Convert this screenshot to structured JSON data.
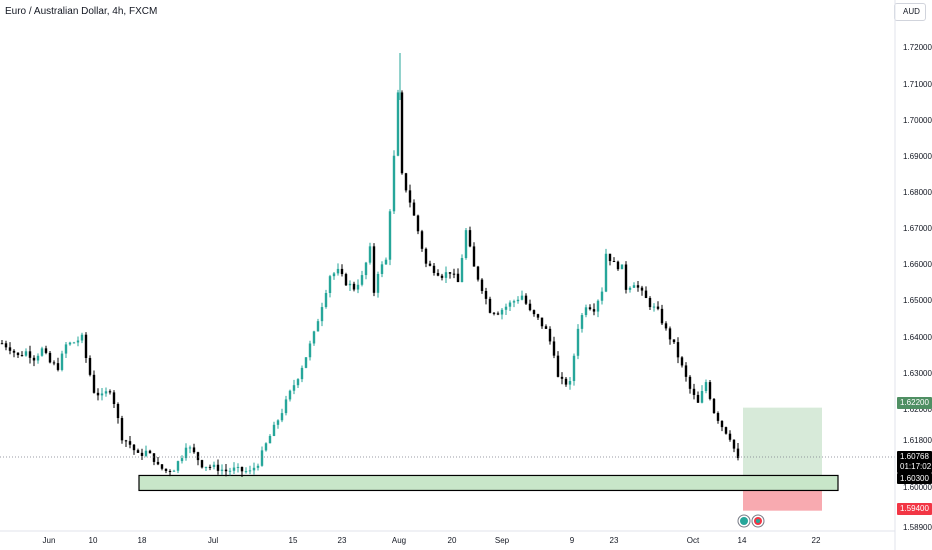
{
  "header": {
    "title": "Euro / Australian Dollar, 4h, FXCM"
  },
  "currency_button": {
    "label": "AUD"
  },
  "colors": {
    "up": "#26a69a",
    "down": "#000000",
    "zone_fill": "#c8e6c9",
    "target_fill": "#d7ead9",
    "stop_fill": "#f8aab0",
    "target_badge": "#4f8f63",
    "stop_badge": "#f23645",
    "current_badge": "#000000"
  },
  "price_badges": {
    "target": "1.62200",
    "current": "1.60768",
    "countdown": "01:17:02",
    "entry": "1.60300",
    "stop": "1.59400"
  },
  "chart_data": {
    "type": "candlestick",
    "title": "Euro / Australian Dollar, 4h, FXCM",
    "yaxis": {
      "ticks": [
        "1.72000",
        "1.71000",
        "1.70000",
        "1.69000",
        "1.68000",
        "1.67000",
        "1.66000",
        "1.65000",
        "1.64000",
        "1.63000",
        "1.62000",
        "1.61800",
        "1.60000",
        "1.58900"
      ],
      "range": [
        1.588,
        1.722
      ]
    },
    "xaxis": {
      "ticks": [
        "Jun",
        "10",
        "18",
        "Jul",
        "15",
        "23",
        "Aug",
        "20",
        "Sep",
        "9",
        "23",
        "Oct",
        "14",
        "22"
      ]
    },
    "price_path": [
      [
        0,
        1.6395
      ],
      [
        2,
        1.6382
      ],
      [
        4,
        1.636
      ],
      [
        6,
        1.6372
      ],
      [
        8,
        1.6355
      ],
      [
        10,
        1.6378
      ],
      [
        12,
        1.6342
      ],
      [
        14,
        1.633
      ],
      [
        16,
        1.639
      ],
      [
        18,
        1.6398
      ],
      [
        20,
        1.641
      ],
      [
        21,
        1.6355
      ],
      [
        23,
        1.6265
      ],
      [
        25,
        1.625
      ],
      [
        27,
        1.627
      ],
      [
        28,
        1.6235
      ],
      [
        30,
        1.614
      ],
      [
        32,
        1.612
      ],
      [
        34,
        1.609
      ],
      [
        36,
        1.61
      ],
      [
        38,
        1.608
      ],
      [
        39,
        1.606
      ],
      [
        41,
        1.6048
      ],
      [
        43,
        1.6055
      ],
      [
        45,
        1.609
      ],
      [
        46,
        1.612
      ],
      [
        48,
        1.6095
      ],
      [
        50,
        1.6065
      ],
      [
        52,
        1.606
      ],
      [
        54,
        1.6055
      ],
      [
        56,
        1.6048
      ],
      [
        58,
        1.6052
      ],
      [
        60,
        1.6048
      ],
      [
        62,
        1.6045
      ],
      [
        64,
        1.607
      ],
      [
        66,
        1.612
      ],
      [
        68,
        1.6165
      ],
      [
        70,
        1.621
      ],
      [
        72,
        1.626
      ],
      [
        74,
        1.6305
      ],
      [
        76,
        1.636
      ],
      [
        78,
        1.642
      ],
      [
        80,
        1.65
      ],
      [
        82,
        1.658
      ],
      [
        84,
        1.659
      ],
      [
        86,
        1.656
      ],
      [
        88,
        1.6545
      ],
      [
        90,
        1.6575
      ],
      [
        92,
        1.665
      ],
      [
        93,
        1.6535
      ],
      [
        94,
        1.659
      ],
      [
        96,
        1.662
      ],
      [
        98,
        1.69
      ],
      [
        99,
        1.707
      ],
      [
        100,
        1.685
      ],
      [
        102,
        1.678
      ],
      [
        104,
        1.67
      ],
      [
        106,
        1.661
      ],
      [
        108,
        1.6595
      ],
      [
        110,
        1.658
      ],
      [
        112,
        1.659
      ],
      [
        114,
        1.656
      ],
      [
        116,
        1.67
      ],
      [
        118,
        1.66
      ],
      [
        120,
        1.6545
      ],
      [
        122,
        1.6485
      ],
      [
        124,
        1.648
      ],
      [
        126,
        1.6495
      ],
      [
        128,
        1.651
      ],
      [
        130,
        1.6525
      ],
      [
        132,
        1.648
      ],
      [
        134,
        1.646
      ],
      [
        136,
        1.643
      ],
      [
        138,
        1.637
      ],
      [
        139,
        1.63
      ],
      [
        140,
        1.629
      ],
      [
        142,
        1.6285
      ],
      [
        144,
        1.644
      ],
      [
        146,
        1.65
      ],
      [
        148,
        1.649
      ],
      [
        150,
        1.654
      ],
      [
        151,
        1.664
      ],
      [
        153,
        1.661
      ],
      [
        155,
        1.66
      ],
      [
        156,
        1.6545
      ],
      [
        158,
        1.656
      ],
      [
        160,
        1.653
      ],
      [
        162,
        1.65
      ],
      [
        164,
        1.648
      ],
      [
        166,
        1.643
      ],
      [
        168,
        1.639
      ],
      [
        170,
        1.633
      ],
      [
        172,
        1.627
      ],
      [
        174,
        1.623
      ],
      [
        176,
        1.629
      ],
      [
        178,
        1.621
      ],
      [
        180,
        1.617
      ],
      [
        182,
        1.614
      ],
      [
        184,
        1.6077
      ]
    ],
    "price_levels": {
      "target": 1.622,
      "current": 1.60768,
      "entry": 1.603,
      "stop": 1.594,
      "demand_zone_top": 1.6052,
      "demand_zone_bottom": 1.6012
    },
    "grid": false
  }
}
